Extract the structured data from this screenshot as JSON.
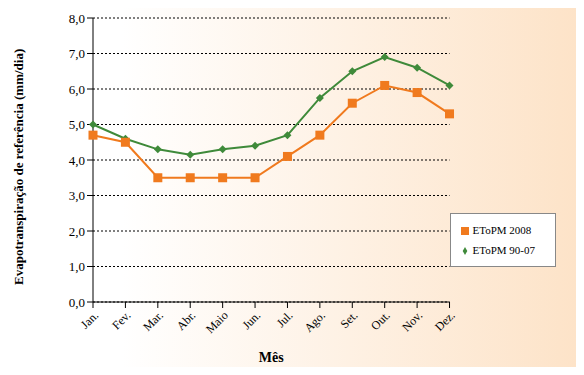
{
  "chart_data": {
    "type": "line",
    "x_label": "Mês",
    "y_label": "Evapotranspiração de referência (mm/dia)",
    "categories": [
      "Jan.",
      "Fev.",
      "Mar.",
      "Abr.",
      "Maio",
      "Jun.",
      "Jul.",
      "Ago.",
      "Set.",
      "Out.",
      "Nov.",
      "Dez."
    ],
    "series": [
      {
        "name": "EToPM 90-07",
        "color": "#3f8a3a",
        "marker": "diamond",
        "values": [
          5.0,
          4.6,
          4.3,
          4.15,
          4.3,
          4.4,
          4.7,
          5.75,
          6.5,
          6.9,
          6.6,
          6.1
        ]
      },
      {
        "name": "EToPM 2008",
        "color": "#f07a1e",
        "marker": "square",
        "values": [
          4.7,
          4.5,
          3.5,
          3.5,
          3.5,
          3.5,
          4.1,
          4.7,
          5.6,
          6.1,
          5.9,
          5.3
        ]
      }
    ],
    "ylim": [
      0,
      8
    ],
    "yticks": [
      {
        "value": 0,
        "label": "0,0"
      },
      {
        "value": 1,
        "label": "1,0"
      },
      {
        "value": 2,
        "label": "2,0"
      },
      {
        "value": 3,
        "label": "3,0"
      },
      {
        "value": 4,
        "label": "4,0"
      },
      {
        "value": 5,
        "label": "5,0"
      },
      {
        "value": 6,
        "label": "6,0"
      },
      {
        "value": 7,
        "label": "7,0"
      },
      {
        "value": 8,
        "label": "8,0"
      }
    ],
    "grid": true,
    "legend": "lower right"
  }
}
